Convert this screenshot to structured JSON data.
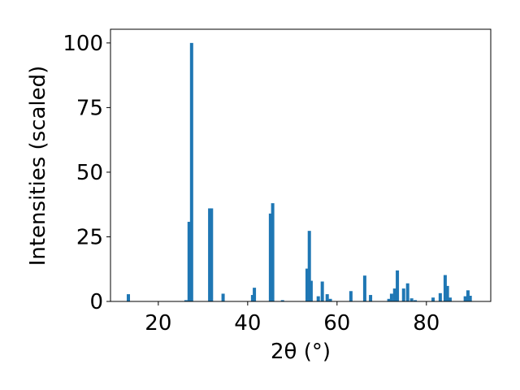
{
  "chart_data": {
    "type": "bar",
    "xlabel": "2θ (°)",
    "ylabel": "Intensities (scaled)",
    "x": [
      13.3,
      26.2,
      26.9,
      27.45,
      31.5,
      31.9,
      34.5,
      41.1,
      41.5,
      45.1,
      45.6,
      47.8,
      53.3,
      53.8,
      54.2,
      55.8,
      56.7,
      57.8,
      58.5,
      63.1,
      66.2,
      67.5,
      71.6,
      72.2,
      72.9,
      73.5,
      74.9,
      75.8,
      76.7,
      77.5,
      81.5,
      83.1,
      84.2,
      84.7,
      85.3,
      88.7,
      89.3,
      89.8
    ],
    "values": [
      2.8,
      0.5,
      30.8,
      100,
      36,
      36,
      3,
      2.5,
      5.3,
      34,
      38,
      0.5,
      12.7,
      27.3,
      8,
      2,
      7.7,
      2.8,
      1,
      4,
      10,
      2.5,
      1,
      3,
      5,
      12,
      5,
      7,
      1.2,
      0.5,
      1.5,
      3.2,
      10.2,
      6,
      1.5,
      2,
      4.3,
      2.2
    ],
    "color": "#1f77b4",
    "xlim": [
      9.3,
      94.4
    ],
    "ylim": [
      0,
      105.3
    ],
    "xticks": [
      20,
      40,
      60,
      80
    ],
    "yticks": [
      0,
      25,
      50,
      75,
      100
    ]
  }
}
